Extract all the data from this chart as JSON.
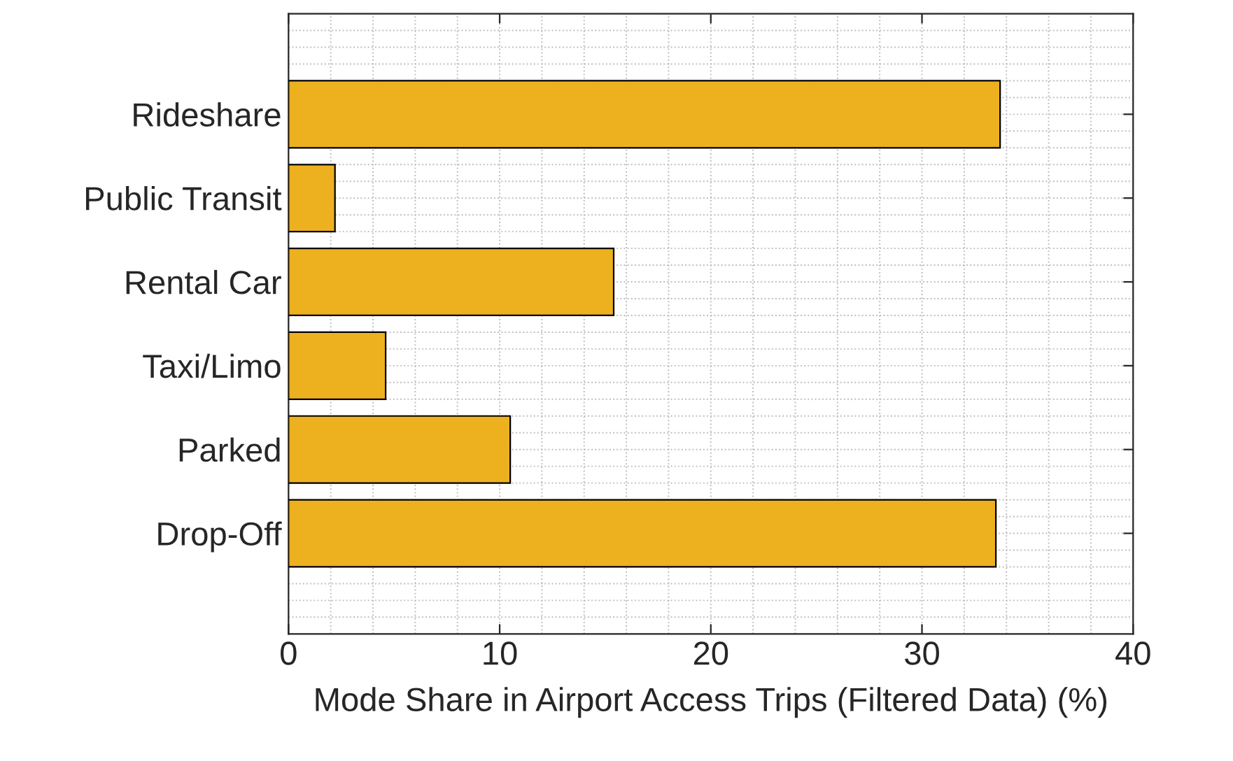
{
  "chart_data": {
    "type": "bar",
    "orientation": "horizontal",
    "categories": [
      "Rideshare",
      "Public Transit",
      "Rental Car",
      "Taxi/Limo",
      "Parked",
      "Drop-Off"
    ],
    "values": [
      33.7,
      2.2,
      15.4,
      4.6,
      10.5,
      33.5
    ],
    "color": "#edb120",
    "xlabel": "Mode Share in Airport Access Trips (Filtered Data) (%)",
    "xlim": [
      0,
      40
    ],
    "xticks": [
      0,
      10,
      20,
      30,
      40
    ],
    "grid": true
  }
}
